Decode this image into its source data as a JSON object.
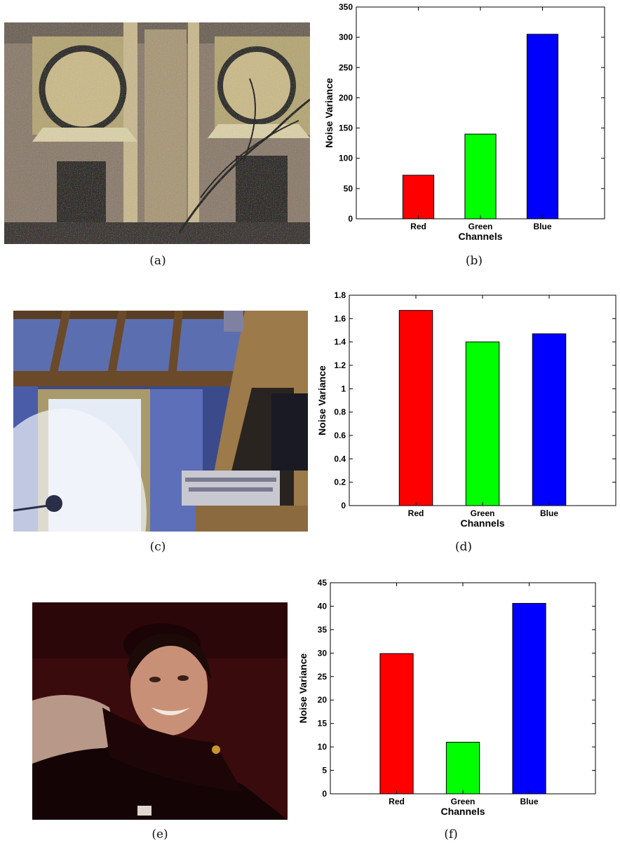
{
  "captions": [
    "(a)",
    "(b)",
    "(c)",
    "(d)",
    "(e)",
    "(f)"
  ],
  "chart_data": [
    {
      "type": "bar",
      "categories": [
        "Red",
        "Green",
        "Blue"
      ],
      "values": [
        72,
        140,
        305
      ],
      "colors": [
        "#ff0000",
        "#00ff00",
        "#0000ff"
      ],
      "xlabel": "Channels",
      "ylabel": "Noise Variance",
      "ylim": [
        0,
        350
      ],
      "yticks": [
        0,
        50,
        100,
        150,
        200,
        250,
        300,
        350
      ],
      "ytick_labels": [
        "0",
        "50",
        "100",
        "150",
        "200",
        "250",
        "300",
        "350"
      ],
      "grid": false
    },
    {
      "type": "bar",
      "categories": [
        "Red",
        "Green",
        "Blue"
      ],
      "values": [
        1.67,
        1.4,
        1.47
      ],
      "colors": [
        "#ff0000",
        "#00ff00",
        "#0000ff"
      ],
      "xlabel": "Channels",
      "ylabel": "Noise Variance",
      "ylim": [
        0,
        1.8
      ],
      "yticks": [
        0,
        0.2,
        0.4,
        0.6,
        0.8,
        1,
        1.2,
        1.4,
        1.6,
        1.8
      ],
      "ytick_labels": [
        "0",
        "0.2",
        "0.4",
        "0.6",
        "0.8",
        "1",
        "1.2",
        "1.4",
        "1.6",
        "1.8"
      ],
      "grid": false
    },
    {
      "type": "bar",
      "categories": [
        "Red",
        "Green",
        "Blue"
      ],
      "values": [
        29.9,
        11,
        40.6
      ],
      "colors": [
        "#ff0000",
        "#00ff00",
        "#0000ff"
      ],
      "xlabel": "Channels",
      "ylabel": "Noise Variance",
      "ylim": [
        0,
        45
      ],
      "yticks": [
        0,
        5,
        10,
        15,
        20,
        25,
        30,
        35,
        40,
        45
      ],
      "ytick_labels": [
        "0",
        "5",
        "10",
        "15",
        "20",
        "25",
        "30",
        "35",
        "40",
        "45"
      ],
      "grid": false
    }
  ]
}
